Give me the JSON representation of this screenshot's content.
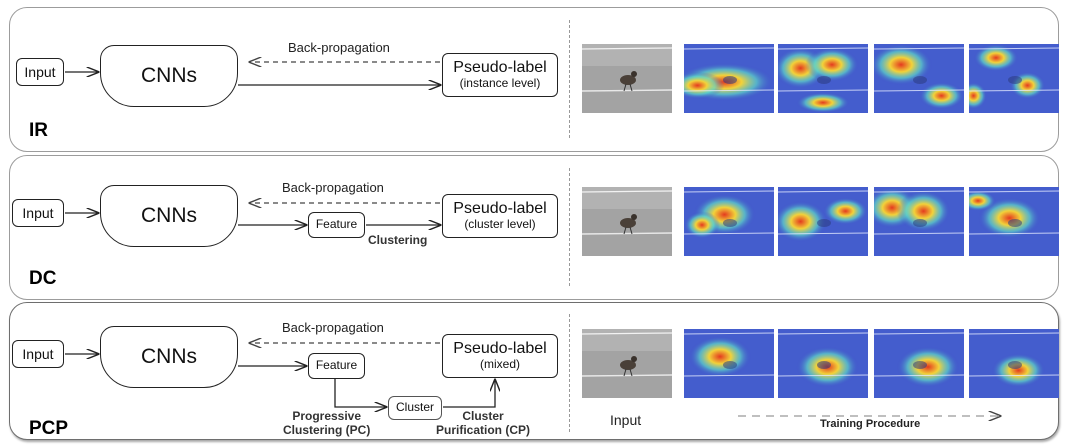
{
  "panels": [
    {
      "tag": "IR",
      "input": "Input",
      "cnn": "CNNs",
      "backprop": "Back-propagation",
      "pseudo_title": "Pseudo-label",
      "pseudo_sub": "(instance level)"
    },
    {
      "tag": "DC",
      "input": "Input",
      "cnn": "CNNs",
      "backprop": "Back-propagation",
      "feature": "Feature",
      "clustering": "Clustering",
      "pseudo_title": "Pseudo-label",
      "pseudo_sub": "(cluster level)"
    },
    {
      "tag": "PCP",
      "input": "Input",
      "cnn": "CNNs",
      "backprop": "Back-propagation",
      "feature": "Feature",
      "cluster": "Cluster",
      "pc_line1": "Progressive",
      "pc_line2": "Clustering (PC)",
      "cp_line1": "Cluster",
      "cp_line2": "Purification (CP)",
      "pseudo_title": "Pseudo-label",
      "pseudo_sub": "(mixed)"
    }
  ],
  "footer": {
    "input_label": "Input",
    "training_label": "Training Procedure"
  },
  "colors": {
    "heat_low": "#3a46c8",
    "heat_high": "#e43a1f",
    "photo_gray": "#9a9a9a"
  },
  "icons": [
    "bird-photo",
    "attention-heatmap"
  ]
}
